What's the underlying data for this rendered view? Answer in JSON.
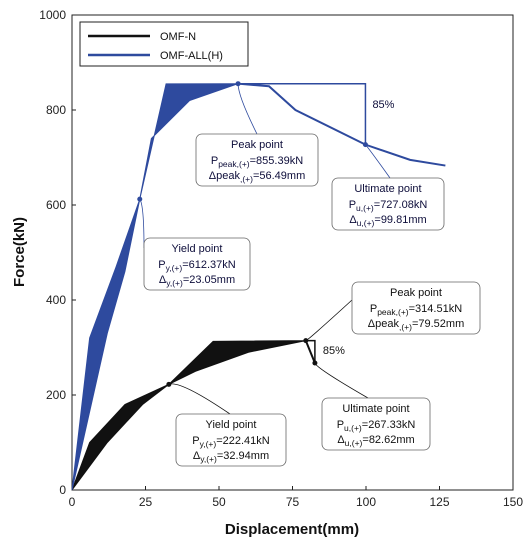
{
  "chart_data": {
    "type": "line",
    "xlabel": "Displacement(mm)",
    "ylabel": "Force(kN)",
    "xlim": [
      0,
      150
    ],
    "ylim": [
      0,
      1000
    ],
    "xticks": [
      "0",
      "25",
      "50",
      "75",
      "100",
      "125",
      "150"
    ],
    "yticks": [
      "0",
      "200",
      "400",
      "600",
      "800",
      "1000"
    ],
    "legend_position": "top-left",
    "legend": [
      "OMF-N",
      "OMF-ALL(H)"
    ],
    "series": [
      {
        "name": "OMF-N",
        "color": "#111111",
        "upper": [
          [
            0,
            0
          ],
          [
            6,
            100
          ],
          [
            18,
            180
          ],
          [
            32.94,
            222.41
          ],
          [
            48,
            313
          ],
          [
            79.52,
            314.51
          ],
          [
            82.6,
            314.51
          ]
        ],
        "lower": [
          [
            0,
            0
          ],
          [
            12,
            100
          ],
          [
            24,
            180
          ],
          [
            32.94,
            222.41
          ],
          [
            42,
            250
          ],
          [
            60,
            290
          ],
          [
            79.52,
            314.51
          ]
        ],
        "drop": [
          [
            79.52,
            314.51
          ],
          [
            82.62,
            267.33
          ]
        ]
      },
      {
        "name": "OMF-ALL(H)",
        "color": "#2e4a9e",
        "upper": [
          [
            0,
            0
          ],
          [
            6,
            320
          ],
          [
            15,
            470
          ],
          [
            23.05,
            612.37
          ],
          [
            32,
            855
          ],
          [
            56.49,
            855.39
          ]
        ],
        "lower": [
          [
            0,
            0
          ],
          [
            12,
            330
          ],
          [
            18,
            460
          ],
          [
            23.05,
            612.37
          ],
          [
            27,
            740
          ],
          [
            40,
            820
          ],
          [
            56.49,
            855.39
          ]
        ],
        "post": [
          [
            56.49,
            855.39
          ],
          [
            67,
            850
          ],
          [
            76,
            800
          ],
          [
            99.81,
            727.08
          ],
          [
            115,
            695
          ],
          [
            127,
            683
          ]
        ]
      }
    ],
    "reference_lines": [
      {
        "color": "#2e4a9e",
        "points": [
          [
            56.49,
            855.39
          ],
          [
            99.81,
            855.39
          ],
          [
            99.81,
            727.08
          ]
        ],
        "label": "85%"
      },
      {
        "color": "#111111",
        "points": [
          [
            79.52,
            314.51
          ],
          [
            82.62,
            314.51
          ],
          [
            82.62,
            267.33
          ]
        ],
        "label": "85%"
      }
    ],
    "annotations": [
      {
        "id": "blue_peak",
        "title": "Peak point",
        "line1": "P<sub>peak,(+)</sub>=855.39kN",
        "line1_main": "P",
        "line1_sub": "peak,(+)",
        "line1_val": "=855.39kN",
        "line2_main": "Δpeak",
        "line2_sub": ",(+)",
        "line2_val": "=56.49mm"
      },
      {
        "id": "blue_ult",
        "title": "Ultimate point",
        "line1_main": "P",
        "line1_sub": "u,(+)",
        "line1_val": "=727.08kN",
        "line2_main": "Δ",
        "line2_sub": "u,(+)",
        "line2_val": "=99.81mm"
      },
      {
        "id": "blue_yield",
        "title": "Yield point",
        "line1_main": "P",
        "line1_sub": "y,(+)",
        "line1_val": "=612.37kN",
        "line2_main": "Δ",
        "line2_sub": "y,(+)",
        "line2_val": "=23.05mm"
      },
      {
        "id": "black_peak",
        "title": "Peak point",
        "line1_main": "P",
        "line1_sub": "peak,(+)",
        "line1_val": "=314.51kN",
        "line2_main": "Δpeak",
        "line2_sub": ",(+)",
        "line2_val": "=79.52mm"
      },
      {
        "id": "black_ult",
        "title": "Ultimate point",
        "line1_main": "P",
        "line1_sub": "u,(+)",
        "line1_val": "=267.33kN",
        "line2_main": "Δ",
        "line2_sub": "u,(+)",
        "line2_val": "=82.62mm"
      },
      {
        "id": "black_yield",
        "title": "Yield point",
        "line1_main": "P",
        "line1_sub": "y,(+)",
        "line1_val": "=222.41kN",
        "line2_main": "Δ",
        "line2_sub": "y,(+)",
        "line2_val": "=32.94mm"
      }
    ]
  }
}
